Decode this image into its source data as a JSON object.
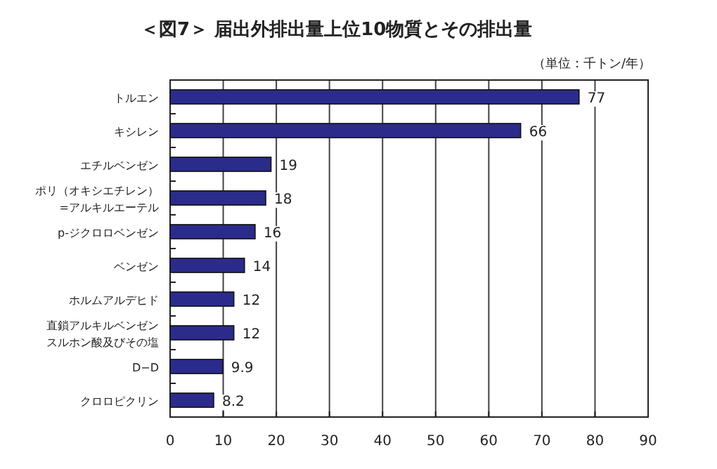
{
  "chart_data": {
    "type": "bar",
    "orientation": "horizontal",
    "title": "＜図7＞ 届出外排出量上位10物質とその排出量",
    "annotations": [
      "（単位：千トン/年）"
    ],
    "categories": [
      "トルエン",
      "キシレン",
      "エチルベンゼン",
      "ポリ（オキシエチレン）\n=アルキルエーテル",
      "p-ジクロロベンゼン",
      "ベンゼン",
      "ホルムアルデヒド",
      "直鎖アルキルベンゼンスルホン酸及びその塩",
      "D−D",
      "クロロピクリン"
    ],
    "values": [
      77,
      66,
      19,
      18,
      16,
      14,
      12,
      12,
      9.9,
      8.2
    ],
    "color": "#2b2b8c",
    "data_labels": true,
    "xlim": [
      0,
      90
    ],
    "xticks": [
      0,
      10,
      20,
      30,
      40,
      50,
      60,
      70,
      80,
      90
    ],
    "grid": "x"
  }
}
